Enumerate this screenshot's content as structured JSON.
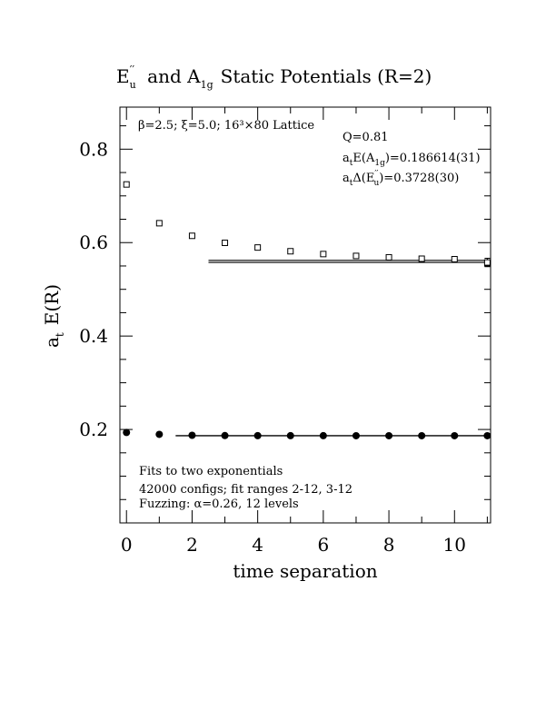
{
  "chart_data": {
    "type": "scatter",
    "title": {
      "main": "E",
      "main_sup": "′′",
      "main_sub": "u",
      "mid": "and A",
      "mid_sub": "1g",
      "end": "Static Potentials (R=2)"
    },
    "xlabel": "time separation",
    "ylabel": {
      "prefix": "a",
      "sub": "t",
      "rest": "E(R)"
    },
    "xlim": [
      -0.2,
      11.1
    ],
    "ylim": [
      0.0,
      0.89
    ],
    "x_ticks": [
      0,
      2,
      4,
      6,
      8,
      10
    ],
    "x_tick_labels": [
      "0",
      "2",
      "4",
      "6",
      "8",
      "10"
    ],
    "y_ticks": [
      0.2,
      0.4,
      0.6,
      0.8
    ],
    "y_tick_labels": [
      "0.2",
      "0.4",
      "0.6",
      "0.8"
    ],
    "annotations": {
      "lattice": "β=2.5; ξ=5.0; 16³×80 Lattice",
      "q": "Q=0.81",
      "energy_a1g": {
        "prefix": "a",
        "sub": "t",
        "mid": "E(A",
        "sub2": "1g",
        "rest": ")=0.186614(31)"
      },
      "delta_eu": {
        "prefix": "a",
        "sub": "t",
        "mid": "Δ(E",
        "sup": "′′",
        "sub2": "u",
        "rest": ")=0.3728(30)"
      },
      "fit_note_1": "Fits to two exponentials",
      "fit_note_2": "42000 configs; fit ranges 2-12, 3-12",
      "fit_note_3": "Fuzzing: α=0.26, 12 levels"
    },
    "series": [
      {
        "marker": "open-square",
        "x": [
          0,
          1,
          2,
          3,
          4,
          5,
          6,
          7,
          8,
          9,
          10,
          11
        ],
        "y": [
          0.7245,
          0.6415,
          0.6145,
          0.5995,
          0.5895,
          0.5815,
          0.5755,
          0.5715,
          0.5685,
          0.5655,
          0.5645,
          0.5575
        ],
        "err": [
          0.002,
          0.002,
          0.002,
          0.002,
          0.002,
          0.002,
          0.002,
          0.002,
          0.002,
          0.003,
          0.003,
          0.009
        ]
      },
      {
        "marker": "filled-circle",
        "x": [
          0,
          1,
          2,
          3,
          4,
          5,
          6,
          7,
          8,
          9,
          10,
          11
        ],
        "y": [
          0.1935,
          0.1895,
          0.1875,
          0.187,
          0.1868,
          0.1867,
          0.1867,
          0.1866,
          0.1866,
          0.1866,
          0.1866,
          0.1866
        ]
      }
    ],
    "fit_bands": [
      {
        "x_range": [
          2.5,
          11.0
        ],
        "upper": 0.562,
        "lower": 0.5575
      },
      {
        "x_range": [
          1.5,
          11.0
        ],
        "upper": 0.1869,
        "lower": 0.1863
      }
    ]
  }
}
